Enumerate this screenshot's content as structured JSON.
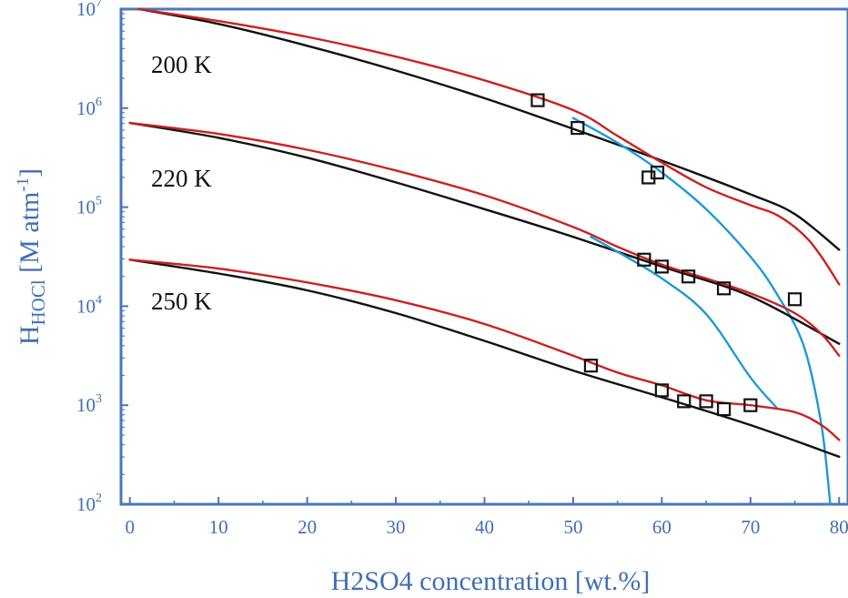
{
  "chart_data": {
    "type": "line",
    "xlabel": "H2SO4 concentration [wt.%]",
    "ylabel": {
      "main": "H",
      "sub": "HOCl",
      "unit_pre": " [M atm",
      "unit_sup": "-1",
      "unit_post": "]"
    },
    "xlim": [
      -1,
      81
    ],
    "ylim": [
      2,
      7
    ],
    "yscale": "log",
    "x_ticks": [
      0,
      10,
      20,
      30,
      40,
      50,
      60,
      70,
      80
    ],
    "y_ticks": [
      {
        "base": "10",
        "exp": "2"
      },
      {
        "base": "10",
        "exp": "3"
      },
      {
        "base": "10",
        "exp": "4"
      },
      {
        "base": "10",
        "exp": "5"
      },
      {
        "base": "10",
        "exp": "6"
      },
      {
        "base": "10",
        "exp": "7"
      }
    ],
    "annotations": [
      "200 K",
      "220 K",
      "250 K"
    ],
    "colors": {
      "frame": "#4a78b8",
      "black": "#111111",
      "red": "#cc2222",
      "blue": "#1f9ad6",
      "text_blue": "#3f6fb5"
    },
    "series": [
      {
        "color": "black",
        "x": [
          1,
          10,
          20,
          30,
          40,
          50,
          60,
          70,
          75,
          80
        ],
        "y": [
          7.0,
          6.85,
          6.63,
          6.38,
          6.1,
          5.79,
          5.47,
          5.13,
          4.93,
          4.57
        ]
      },
      {
        "color": "red",
        "x": [
          1,
          10,
          20,
          30,
          40,
          50,
          55,
          60,
          65,
          70,
          73,
          76,
          78,
          80
        ],
        "y": [
          7.0,
          6.88,
          6.72,
          6.52,
          6.28,
          5.98,
          5.72,
          5.45,
          5.2,
          5.02,
          4.92,
          4.72,
          4.5,
          4.22
        ]
      },
      {
        "color": "blue",
        "x": [
          50,
          55,
          60,
          65,
          70,
          73,
          76,
          78,
          79
        ],
        "y": [
          5.9,
          5.65,
          5.35,
          4.98,
          4.5,
          4.12,
          3.6,
          2.8,
          2.0
        ]
      },
      {
        "color": "black",
        "x": [
          0,
          10,
          20,
          30,
          40,
          50,
          60,
          70,
          80
        ],
        "y": [
          5.85,
          5.7,
          5.5,
          5.25,
          4.98,
          4.7,
          4.4,
          4.1,
          3.62
        ]
      },
      {
        "color": "red",
        "x": [
          0,
          10,
          20,
          30,
          40,
          50,
          55,
          60,
          65,
          70,
          75,
          78,
          80
        ],
        "y": [
          5.85,
          5.74,
          5.58,
          5.37,
          5.12,
          4.8,
          4.6,
          4.42,
          4.28,
          4.13,
          3.93,
          3.72,
          3.5
        ]
      },
      {
        "color": "blue",
        "x": [
          52,
          55,
          60,
          65,
          70,
          73
        ],
        "y": [
          4.7,
          4.55,
          4.28,
          3.92,
          3.28,
          2.97
        ]
      },
      {
        "color": "black",
        "x": [
          0,
          10,
          20,
          30,
          40,
          50,
          60,
          70,
          80
        ],
        "y": [
          4.47,
          4.33,
          4.16,
          3.93,
          3.65,
          3.35,
          3.08,
          2.8,
          2.48
        ]
      },
      {
        "color": "red",
        "x": [
          0,
          10,
          20,
          30,
          40,
          50,
          55,
          60,
          65,
          70,
          75,
          78,
          80
        ],
        "y": [
          4.47,
          4.38,
          4.24,
          4.06,
          3.82,
          3.5,
          3.33,
          3.2,
          3.05,
          3.0,
          2.93,
          2.8,
          2.65
        ]
      }
    ],
    "markers": [
      {
        "x": 46,
        "y": 6.08
      },
      {
        "x": 50.5,
        "y": 5.8
      },
      {
        "x": 58.5,
        "y": 5.3
      },
      {
        "x": 59.5,
        "y": 5.35
      },
      {
        "x": 58,
        "y": 4.47
      },
      {
        "x": 60,
        "y": 4.4
      },
      {
        "x": 63,
        "y": 4.3
      },
      {
        "x": 67,
        "y": 4.18
      },
      {
        "x": 75,
        "y": 4.07
      },
      {
        "x": 52,
        "y": 3.4
      },
      {
        "x": 60,
        "y": 3.15
      },
      {
        "x": 62.5,
        "y": 3.04
      },
      {
        "x": 65,
        "y": 3.04
      },
      {
        "x": 67,
        "y": 2.96
      },
      {
        "x": 70,
        "y": 3.0
      }
    ]
  }
}
